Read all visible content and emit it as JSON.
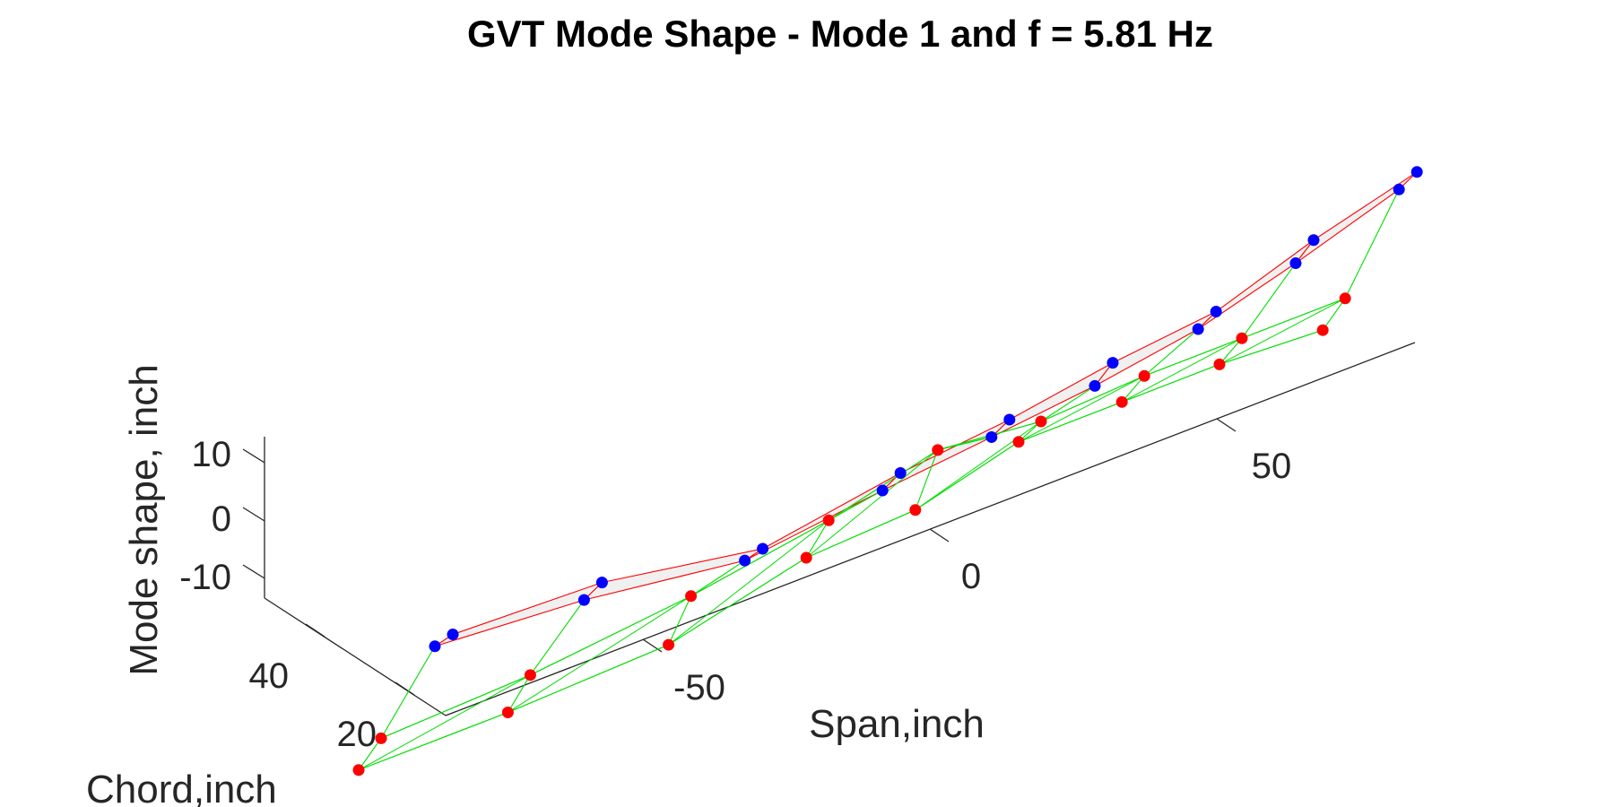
{
  "chart_data": {
    "type": "line3d",
    "title": "GVT Mode Shape - Mode 1 and f = 5.81 Hz",
    "xlabel": "Span,inch",
    "ylabel": "Chord,inch",
    "zlabel": "Mode shape, inch",
    "x_ticks": [
      "-50",
      "0",
      "50"
    ],
    "y_ticks": [
      "20",
      "40"
    ],
    "z_ticks": [
      "-10",
      "0",
      "10"
    ],
    "grid": false,
    "colors": {
      "blue_point": "#0000ff",
      "red_point": "#ff0000",
      "edge_red": "#ff0000",
      "edge_green": "#00dd00",
      "patch_fill": "#f0f0f0"
    },
    "series": [
      {
        "values": [
          {
            "x": -105,
            "y": 46,
            "z": 10
          },
          {
            "x": -79,
            "y": 46,
            "z": 9
          },
          {
            "x": -51,
            "y": 46,
            "z": 4
          },
          {
            "x": -27,
            "y": 46,
            "z": 8
          },
          {
            "x": -8,
            "y": 46,
            "z": 10
          },
          {
            "x": 10,
            "y": 46,
            "z": 13
          },
          {
            "x": 28,
            "y": 46,
            "z": 15
          },
          {
            "x": 45,
            "y": 46,
            "z": 21
          },
          {
            "x": 63,
            "y": 46,
            "z": 26
          }
        ]
      },
      {
        "values": [
          {
            "x": -105,
            "y": 42,
            "z": 10
          },
          {
            "x": -79,
            "y": 42,
            "z": 8
          },
          {
            "x": -51,
            "y": 42,
            "z": 4
          },
          {
            "x": -27,
            "y": 42,
            "z": 7
          },
          {
            "x": -8,
            "y": 42,
            "z": 9
          },
          {
            "x": 10,
            "y": 42,
            "z": 11
          },
          {
            "x": 28,
            "y": 42,
            "z": 14
          },
          {
            "x": 45,
            "y": 42,
            "z": 19
          },
          {
            "x": 63,
            "y": 42,
            "z": 25
          }
        ]
      },
      {
        "values": [
          {
            "x": -105,
            "y": 30,
            "z": 0
          },
          {
            "x": -79,
            "y": 30,
            "z": 1
          },
          {
            "x": -51,
            "y": 30,
            "z": 4
          },
          {
            "x": -27,
            "y": 30,
            "z": 8
          },
          {
            "x": -8,
            "y": 30,
            "z": 13
          },
          {
            "x": 10,
            "y": 30,
            "z": 11
          },
          {
            "x": 28,
            "y": 30,
            "z": 12
          },
          {
            "x": 45,
            "y": 30,
            "z": 12
          },
          {
            "x": 63,
            "y": 30,
            "z": 12
          }
        ]
      },
      {
        "values": [
          {
            "x": -105,
            "y": 25,
            "z": -3
          },
          {
            "x": -79,
            "y": 25,
            "z": -3
          },
          {
            "x": -51,
            "y": 25,
            "z": -2
          },
          {
            "x": -27,
            "y": 25,
            "z": 4
          },
          {
            "x": -8,
            "y": 25,
            "z": 5
          },
          {
            "x": 10,
            "y": 25,
            "z": 10
          },
          {
            "x": 28,
            "y": 25,
            "z": 10
          },
          {
            "x": 45,
            "y": 25,
            "z": 10
          },
          {
            "x": 63,
            "y": 25,
            "z": 9
          }
        ]
      }
    ]
  }
}
